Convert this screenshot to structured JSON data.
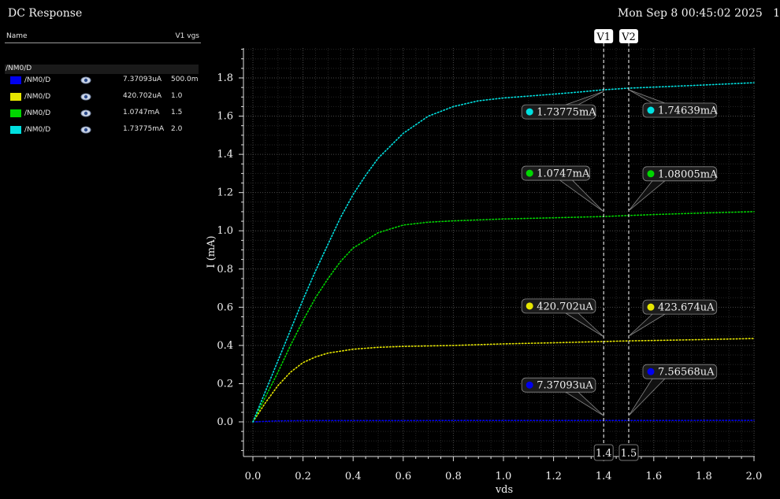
{
  "window": {
    "title": "DC Response",
    "datetime": "Mon Sep 8 00:45:02 2025   1"
  },
  "legend": {
    "header_name": "Name",
    "header_param": "V1 vgs",
    "group": "/NM0/D",
    "rows": [
      {
        "name": "/NM0/D",
        "color": "#0000ee",
        "value": "7.37093uA",
        "vgs": "500.0m",
        "icon": "eye-icon"
      },
      {
        "name": "/NM0/D",
        "color": "#e6e600",
        "value": "420.702uA",
        "vgs": "1.0",
        "icon": "eye-icon"
      },
      {
        "name": "/NM0/D",
        "color": "#00d600",
        "value": "1.0747mA",
        "vgs": "1.5",
        "icon": "eye-icon"
      },
      {
        "name": "/NM0/D",
        "color": "#00e0e0",
        "value": "1.73775mA",
        "vgs": "2.0",
        "icon": "eye-icon"
      }
    ]
  },
  "chart_data": {
    "type": "line",
    "xlabel": "vds",
    "ylabel": "I (mA)",
    "xlim": [
      0,
      2.0
    ],
    "ylim": [
      -0.18,
      1.96
    ],
    "xticks": [
      "0.0",
      "0.2",
      "0.4",
      "0.6",
      "0.8",
      "1.0",
      "1.2",
      "1.4",
      "1.6",
      "1.8",
      "2.0"
    ],
    "yticks": [
      "0.0",
      "0.2",
      "0.4",
      "0.6",
      "0.8",
      "1.0",
      "1.2",
      "1.4",
      "1.6",
      "1.8"
    ],
    "grid": true,
    "series": [
      {
        "vgs": 0.5,
        "color": "#0000ee",
        "x": [
          0.0,
          0.1,
          0.2,
          0.3,
          0.4,
          0.6,
          0.8,
          1.0,
          1.2,
          1.4,
          1.6,
          1.8,
          2.0
        ],
        "y": [
          0.0,
          0.0055,
          0.0065,
          0.0069,
          0.0071,
          0.0072,
          0.0073,
          0.0073,
          0.0074,
          0.0074,
          0.0076,
          0.0077,
          0.0078
        ]
      },
      {
        "vgs": 1.0,
        "color": "#e6e600",
        "x": [
          0.0,
          0.05,
          0.1,
          0.15,
          0.2,
          0.25,
          0.3,
          0.4,
          0.5,
          0.6,
          0.8,
          1.0,
          1.2,
          1.4,
          1.5,
          1.6,
          1.8,
          2.0
        ],
        "y": [
          0.0,
          0.1,
          0.19,
          0.26,
          0.31,
          0.34,
          0.36,
          0.38,
          0.39,
          0.395,
          0.4,
          0.408,
          0.414,
          0.4207,
          0.4237,
          0.426,
          0.431,
          0.436
        ]
      },
      {
        "vgs": 1.5,
        "color": "#00d600",
        "x": [
          0.0,
          0.05,
          0.1,
          0.15,
          0.2,
          0.25,
          0.3,
          0.35,
          0.4,
          0.5,
          0.6,
          0.7,
          0.8,
          1.0,
          1.2,
          1.4,
          1.5,
          1.6,
          1.8,
          2.0
        ],
        "y": [
          0.0,
          0.13,
          0.26,
          0.4,
          0.53,
          0.65,
          0.75,
          0.84,
          0.91,
          0.99,
          1.03,
          1.045,
          1.052,
          1.062,
          1.068,
          1.0747,
          1.08,
          1.085,
          1.093,
          1.1
        ]
      },
      {
        "vgs": 2.0,
        "color": "#00e0e0",
        "x": [
          0.0,
          0.05,
          0.1,
          0.15,
          0.2,
          0.25,
          0.3,
          0.35,
          0.4,
          0.45,
          0.5,
          0.6,
          0.7,
          0.8,
          0.9,
          1.0,
          1.1,
          1.2,
          1.3,
          1.4,
          1.5,
          1.6,
          1.8,
          2.0
        ],
        "y": [
          0.0,
          0.16,
          0.32,
          0.48,
          0.64,
          0.79,
          0.93,
          1.07,
          1.19,
          1.29,
          1.38,
          1.51,
          1.6,
          1.65,
          1.68,
          1.695,
          1.705,
          1.715,
          1.726,
          1.7378,
          1.7464,
          1.752,
          1.763,
          1.775
        ]
      }
    ],
    "cursors": [
      {
        "label": "V1",
        "x": 1.4,
        "x_label": "1.4"
      },
      {
        "label": "V2",
        "x": 1.5,
        "x_label": "1.5"
      }
    ],
    "markers": [
      {
        "label": "1.73775mA",
        "color": "#00e0e0",
        "x": 1.4,
        "y": 1.73775,
        "side": "left"
      },
      {
        "label": "1.74639mA",
        "color": "#00e0e0",
        "x": 1.5,
        "y": 1.74639,
        "side": "right"
      },
      {
        "label": "1.0747mA",
        "color": "#00d600",
        "x": 1.4,
        "y": 1.0747,
        "side": "left"
      },
      {
        "label": "1.08005mA",
        "color": "#00d600",
        "x": 1.5,
        "y": 1.08005,
        "side": "right"
      },
      {
        "label": "420.702uA",
        "color": "#e6e600",
        "x": 1.4,
        "y": 0.420702,
        "side": "left"
      },
      {
        "label": "423.674uA",
        "color": "#e6e600",
        "x": 1.5,
        "y": 0.423674,
        "side": "right"
      },
      {
        "label": "7.37093uA",
        "color": "#0000ee",
        "x": 1.4,
        "y": 0.00737093,
        "side": "left"
      },
      {
        "label": "7.56568uA",
        "color": "#0000ee",
        "x": 1.5,
        "y": 0.00756568,
        "side": "right"
      }
    ]
  }
}
